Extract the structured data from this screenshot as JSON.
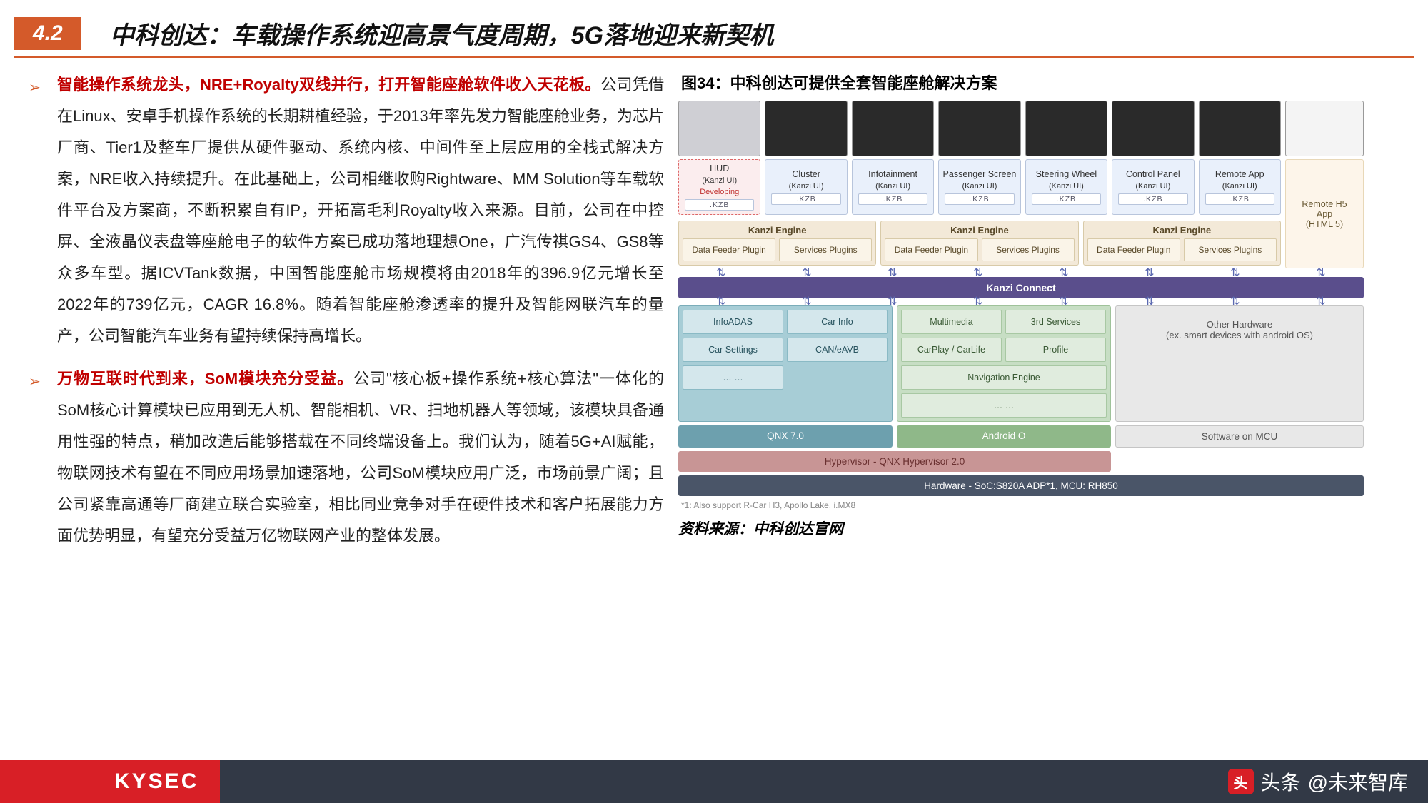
{
  "header": {
    "section_num": "4.2",
    "title": "中科创达：车载操作系统迎高景气度周期，5G落地迎来新契机"
  },
  "bullets": [
    {
      "lead": "智能操作系统龙头，NRE+Royalty双线并行，打开智能座舱软件收入天花板。",
      "body": "公司凭借在Linux、安卓手机操作系统的长期耕植经验，于2013年率先发力智能座舱业务，为芯片厂商、Tier1及整车厂提供从硬件驱动、系统内核、中间件至上层应用的全栈式解决方案，NRE收入持续提升。在此基础上，公司相继收购Rightware、MM Solution等车载软件平台及方案商，不断积累自有IP，开拓高毛利Royalty收入来源。目前，公司在中控屏、全液晶仪表盘等座舱电子的软件方案已成功落地理想One，广汽传祺GS4、GS8等众多车型。据ICVTank数据，中国智能座舱市场规模将由2018年的396.9亿元增长至2022年的739亿元，CAGR 16.8%。随着智能座舱渗透率的提升及智能网联汽车的量产，公司智能汽车业务有望持续保持高增长。"
    },
    {
      "lead": "万物互联时代到来，SoM模块充分受益。",
      "body": "公司\"核心板+操作系统+核心算法\"一体化的SoM核心计算模块已应用到无人机、智能相机、VR、扫地机器人等领域，该模块具备通用性强的特点，稍加改造后能够搭载在不同终端设备上。我们认为，随着5G+AI赋能，物联网技术有望在不同应用场景加速落地，公司SoM模块应用广泛，市场前景广阔；且公司紧靠高通等厂商建立联合实验室，相比同业竞争对手在硬件技术和客户拓展能力方面优势明显，有望充分受益万亿物联网产业的整体发展。"
    }
  ],
  "figure": {
    "title": "图34：中科创达可提供全套智能座舱解决方案",
    "ui_boxes": [
      {
        "name": "HUD",
        "sub": "(Kanzi UI)",
        "dev": "Developing",
        "kzb": ".KZB",
        "cls": "pink"
      },
      {
        "name": "Cluster",
        "sub": "(Kanzi UI)",
        "kzb": ".KZB",
        "cls": "blue1"
      },
      {
        "name": "Infotainment",
        "sub": "(Kanzi UI)",
        "kzb": ".KZB",
        "cls": "blue1"
      },
      {
        "name": "Passenger Screen",
        "sub": "(Kanzi UI)",
        "kzb": ".KZB",
        "cls": "blue1"
      },
      {
        "name": "Steering Wheel",
        "sub": "(Kanzi UI)",
        "kzb": ".KZB",
        "cls": "blue1"
      },
      {
        "name": "Control Panel",
        "sub": "(Kanzi UI)",
        "kzb": ".KZB",
        "cls": "blue1"
      },
      {
        "name": "Remote App",
        "sub": "(Kanzi UI)",
        "kzb": ".KZB",
        "cls": "blue1"
      }
    ],
    "remote_h5": {
      "l1": "Remote H5",
      "l2": "App",
      "l3": "(HTML 5)"
    },
    "engine": {
      "title": "Kanzi Engine",
      "c1": "Data Feeder Plugin",
      "c2": "Services Plugins"
    },
    "connect": "Kanzi Connect",
    "teal_apps": [
      "InfoADAS",
      "Car Info",
      "Car Settings",
      "CAN/eAVB",
      "… …"
    ],
    "green_apps": [
      "Multimedia",
      "3rd Services",
      "CarPlay / CarLife",
      "Profile",
      "Navigation Engine",
      "… …"
    ],
    "other_hw": {
      "l1": "Other Hardware",
      "l2": "(ex. smart devices with android OS)"
    },
    "qnx": "QNX 7.0",
    "android": "Android O",
    "mcu": "Software on MCU",
    "hyper": "Hypervisor - QNX Hypervisor 2.0",
    "hw_bar": "Hardware - SoC:S820A ADP*1, MCU: RH850",
    "footnote": "*1: Also support R-Car H3, Apollo Lake, i.MX8",
    "source": "资料来源：中科创达官网"
  },
  "footer": {
    "brand": "KYSEC",
    "toutiao_label": "头条",
    "handle": "@未来智库"
  },
  "colors": {
    "accent": "#d45a2a",
    "lead": "#c00000",
    "purple": "#5a4e8c",
    "footer_bg": "#323946",
    "red": "#d81f26"
  }
}
